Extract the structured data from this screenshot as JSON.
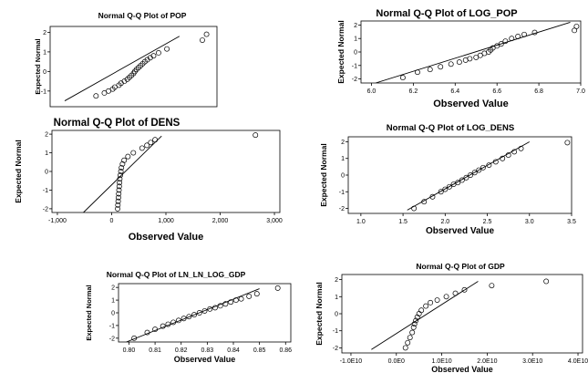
{
  "chart_data": [
    {
      "type": "scatter",
      "title": "Normal Q-Q Plot of POP",
      "xlabel": "",
      "ylabel": "Expected Normal",
      "xlim": [
        -5000000,
        35000000
      ],
      "ylim": [
        -1.8,
        2.3
      ],
      "xticks": [],
      "yticks": [
        -1,
        0,
        1,
        2
      ],
      "ytick_labels": [
        "-1",
        "0",
        "1",
        "2"
      ],
      "reference_line": [
        [
          -1500000,
          -1.5
        ],
        [
          26000000,
          1.8
        ]
      ],
      "points": [
        [
          6000000,
          -1.25
        ],
        [
          8000000,
          -1.1
        ],
        [
          9000000,
          -1.0
        ],
        [
          10000000,
          -0.9
        ],
        [
          10500000,
          -0.8
        ],
        [
          11500000,
          -0.7
        ],
        [
          12000000,
          -0.6
        ],
        [
          12800000,
          -0.5
        ],
        [
          13500000,
          -0.4
        ],
        [
          14000000,
          -0.3
        ],
        [
          14500000,
          -0.2
        ],
        [
          15000000,
          -0.1
        ],
        [
          15300000,
          0.0
        ],
        [
          15700000,
          0.1
        ],
        [
          16200000,
          0.2
        ],
        [
          16700000,
          0.3
        ],
        [
          17200000,
          0.4
        ],
        [
          17700000,
          0.5
        ],
        [
          18300000,
          0.6
        ],
        [
          19000000,
          0.7
        ],
        [
          19800000,
          0.8
        ],
        [
          21000000,
          0.95
        ],
        [
          23000000,
          1.15
        ],
        [
          31500000,
          1.6
        ],
        [
          32500000,
          1.9
        ]
      ]
    },
    {
      "type": "scatter",
      "title": "Normal Q-Q Plot of LOG_POP",
      "xlabel": "Observed Value",
      "ylabel": "Expected Normal",
      "xlim": [
        5.95,
        7.0
      ],
      "ylim": [
        -2.3,
        2.3
      ],
      "xticks": [
        6.0,
        6.2,
        6.4,
        6.6,
        6.8,
        7.0
      ],
      "xtick_labels": [
        "6.0",
        "6.2",
        "6.4",
        "6.6",
        "6.8",
        "7.0"
      ],
      "yticks": [
        -2,
        -1,
        0,
        1,
        2
      ],
      "ytick_labels": [
        "-2",
        "-1",
        "0",
        "1",
        "2"
      ],
      "reference_line": [
        [
          6.02,
          -2.3
        ],
        [
          6.95,
          2.2
        ]
      ],
      "points": [
        [
          6.15,
          -1.9
        ],
        [
          6.22,
          -1.5
        ],
        [
          6.28,
          -1.3
        ],
        [
          6.33,
          -1.1
        ],
        [
          6.38,
          -0.9
        ],
        [
          6.42,
          -0.75
        ],
        [
          6.45,
          -0.6
        ],
        [
          6.47,
          -0.5
        ],
        [
          6.5,
          -0.4
        ],
        [
          6.52,
          -0.25
        ],
        [
          6.54,
          -0.1
        ],
        [
          6.56,
          0.0
        ],
        [
          6.57,
          0.15
        ],
        [
          6.58,
          0.3
        ],
        [
          6.6,
          0.45
        ],
        [
          6.62,
          0.6
        ],
        [
          6.64,
          0.8
        ],
        [
          6.67,
          1.0
        ],
        [
          6.7,
          1.15
        ],
        [
          6.73,
          1.3
        ],
        [
          6.78,
          1.45
        ],
        [
          6.97,
          1.6
        ],
        [
          6.98,
          1.9
        ]
      ]
    },
    {
      "type": "scatter",
      "title": "Normal Q-Q Plot of DENS",
      "xlabel": "Observed Value",
      "ylabel": "Expected Normal",
      "xlim": [
        -1100,
        3100
      ],
      "ylim": [
        -2.2,
        2.2
      ],
      "xticks": [
        -1000,
        0,
        1000,
        2000,
        3000
      ],
      "xtick_labels": [
        "-1,000",
        "0",
        "1,000",
        "2,000",
        "3,000"
      ],
      "yticks": [
        -2,
        -1,
        0,
        1,
        2
      ],
      "ytick_labels": [
        "-2",
        "-1",
        "0",
        "1",
        "2"
      ],
      "reference_line": [
        [
          -520,
          -2.2
        ],
        [
          920,
          1.9
        ]
      ],
      "points": [
        [
          110,
          -2.0
        ],
        [
          115,
          -1.8
        ],
        [
          120,
          -1.6
        ],
        [
          125,
          -1.4
        ],
        [
          130,
          -1.2
        ],
        [
          135,
          -1.0
        ],
        [
          140,
          -0.8
        ],
        [
          145,
          -0.6
        ],
        [
          150,
          -0.4
        ],
        [
          160,
          -0.2
        ],
        [
          170,
          0.0
        ],
        [
          180,
          0.2
        ],
        [
          200,
          0.4
        ],
        [
          230,
          0.6
        ],
        [
          300,
          0.8
        ],
        [
          400,
          1.0
        ],
        [
          560,
          1.25
        ],
        [
          650,
          1.4
        ],
        [
          720,
          1.55
        ],
        [
          800,
          1.7
        ],
        [
          2650,
          1.95
        ]
      ]
    },
    {
      "type": "scatter",
      "title": "Normal Q-Q Plot of LOG_DENS",
      "xlabel": "Observed Value",
      "ylabel": "Expected Normal",
      "xlim": [
        0.85,
        3.5
      ],
      "ylim": [
        -2.3,
        2.3
      ],
      "xticks": [
        1.0,
        1.5,
        2.0,
        2.5,
        3.0,
        3.5
      ],
      "xtick_labels": [
        "1.0",
        "1.5",
        "2.0",
        "2.5",
        "3.0",
        "3.5"
      ],
      "yticks": [
        -2,
        -1,
        0,
        1,
        2
      ],
      "ytick_labels": [
        "-2",
        "-1",
        "0",
        "1",
        "2"
      ],
      "reference_line": [
        [
          1.55,
          -2.1
        ],
        [
          3.0,
          2.0
        ]
      ],
      "points": [
        [
          1.63,
          -2.0
        ],
        [
          1.75,
          -1.6
        ],
        [
          1.85,
          -1.3
        ],
        [
          1.95,
          -1.0
        ],
        [
          2.0,
          -0.85
        ],
        [
          2.05,
          -0.7
        ],
        [
          2.1,
          -0.55
        ],
        [
          2.15,
          -0.45
        ],
        [
          2.2,
          -0.3
        ],
        [
          2.25,
          -0.15
        ],
        [
          2.3,
          0.0
        ],
        [
          2.35,
          0.15
        ],
        [
          2.4,
          0.3
        ],
        [
          2.45,
          0.45
        ],
        [
          2.52,
          0.6
        ],
        [
          2.6,
          0.8
        ],
        [
          2.68,
          1.0
        ],
        [
          2.75,
          1.2
        ],
        [
          2.82,
          1.4
        ],
        [
          2.9,
          1.6
        ],
        [
          3.45,
          1.95
        ]
      ]
    },
    {
      "type": "scatter",
      "title": "Normal Q-Q Plot of LN_LN_LOG_GDP",
      "xlabel": "Observed Value",
      "ylabel": "Expected Normal",
      "xlim": [
        0.796,
        0.862
      ],
      "ylim": [
        -2.3,
        2.3
      ],
      "xticks": [
        0.8,
        0.81,
        0.82,
        0.83,
        0.84,
        0.85,
        0.86
      ],
      "xtick_labels": [
        "0.80",
        "0.81",
        "0.82",
        "0.83",
        "0.84",
        "0.85",
        "0.86"
      ],
      "yticks": [
        -2,
        -1,
        0,
        1,
        2
      ],
      "ytick_labels": [
        "-2",
        "-1",
        "0",
        "1",
        "2"
      ],
      "reference_line": [
        [
          0.799,
          -2.3
        ],
        [
          0.85,
          1.9
        ]
      ],
      "points": [
        [
          0.802,
          -2.0
        ],
        [
          0.807,
          -1.55
        ],
        [
          0.81,
          -1.3
        ],
        [
          0.813,
          -1.05
        ],
        [
          0.815,
          -0.9
        ],
        [
          0.817,
          -0.75
        ],
        [
          0.819,
          -0.6
        ],
        [
          0.821,
          -0.45
        ],
        [
          0.823,
          -0.3
        ],
        [
          0.825,
          -0.15
        ],
        [
          0.827,
          0.0
        ],
        [
          0.829,
          0.15
        ],
        [
          0.831,
          0.3
        ],
        [
          0.833,
          0.4
        ],
        [
          0.835,
          0.55
        ],
        [
          0.837,
          0.7
        ],
        [
          0.839,
          0.85
        ],
        [
          0.841,
          1.0
        ],
        [
          0.843,
          1.1
        ],
        [
          0.846,
          1.3
        ],
        [
          0.849,
          1.5
        ],
        [
          0.857,
          1.95
        ]
      ]
    },
    {
      "type": "scatter",
      "title": "Normal Q-Q Plot of GDP",
      "xlabel": "Observed Value",
      "ylabel": "Expected Normal",
      "xlim": [
        -12000000000,
        41000000000
      ],
      "ylim": [
        -2.3,
        2.3
      ],
      "xticks": [
        -10000000000,
        0,
        10000000000,
        20000000000,
        30000000000,
        40000000000
      ],
      "xtick_labels": [
        "-1.0E10",
        "0.0E0",
        "1.0E10",
        "2.0E10",
        "3.0E10",
        "4.0E10"
      ],
      "yticks": [
        -2,
        -1,
        0,
        1,
        2
      ],
      "ytick_labels": [
        "-2",
        "-1",
        "0",
        "1",
        "2"
      ],
      "reference_line": [
        [
          -5500000000,
          -2.1
        ],
        [
          18000000000,
          1.9
        ]
      ],
      "points": [
        [
          2000000000,
          -2.0
        ],
        [
          2500000000,
          -1.7
        ],
        [
          3000000000,
          -1.4
        ],
        [
          3500000000,
          -1.1
        ],
        [
          3800000000,
          -0.8
        ],
        [
          4000000000,
          -0.6
        ],
        [
          4300000000,
          -0.4
        ],
        [
          4600000000,
          -0.2
        ],
        [
          5000000000,
          0.0
        ],
        [
          5500000000,
          0.2
        ],
        [
          6500000000,
          0.45
        ],
        [
          7500000000,
          0.65
        ],
        [
          9000000000,
          0.8
        ],
        [
          11000000000,
          1.0
        ],
        [
          13000000000,
          1.2
        ],
        [
          15000000000,
          1.4
        ],
        [
          21000000000,
          1.65
        ],
        [
          33000000000,
          1.9
        ]
      ]
    }
  ]
}
